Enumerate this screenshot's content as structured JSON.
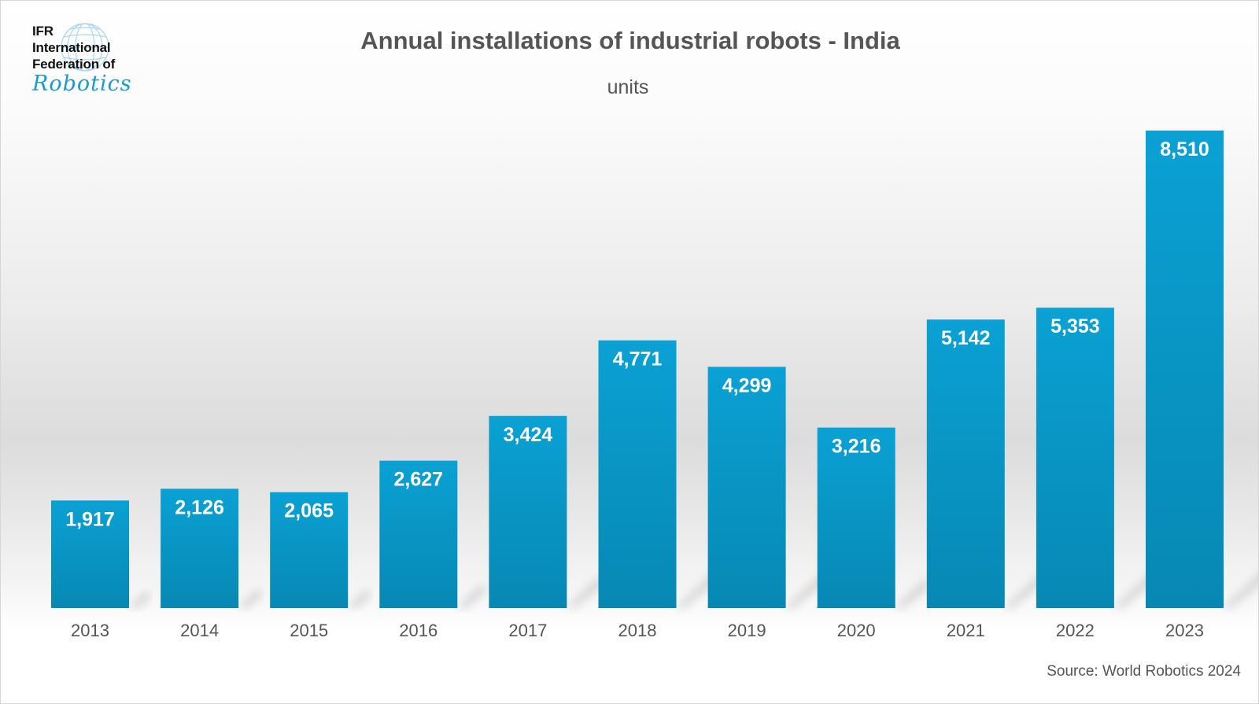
{
  "logo": {
    "line1": "IFR",
    "line2": "International",
    "line3": "Federation of",
    "script": "Robotics"
  },
  "source": "Source: World Robotics 2024",
  "colors": {
    "bar_top": "#0aa1d4",
    "bar_bottom": "#0788b3",
    "text": "#555555",
    "label": "#ffffff"
  },
  "chart_data": {
    "type": "bar",
    "title": "Annual installations of industrial robots - India",
    "subtitle": "units",
    "xlabel": "",
    "ylabel": "",
    "categories": [
      "2013",
      "2014",
      "2015",
      "2016",
      "2017",
      "2018",
      "2019",
      "2020",
      "2021",
      "2022",
      "2023"
    ],
    "values": [
      1917,
      2126,
      2065,
      2627,
      3424,
      4771,
      4299,
      3216,
      5142,
      5353,
      8510
    ],
    "value_labels": [
      "1,917",
      "2,126",
      "2,065",
      "2,627",
      "3,424",
      "4,771",
      "4,299",
      "3,216",
      "5,142",
      "5,353",
      "8,510"
    ],
    "grid": false,
    "legend": "none"
  }
}
